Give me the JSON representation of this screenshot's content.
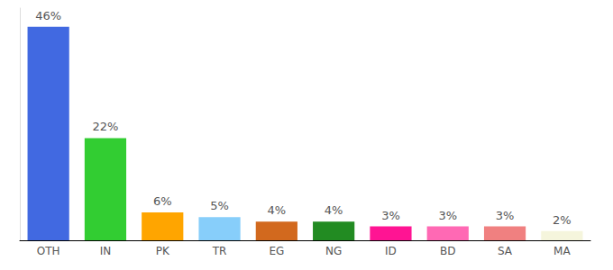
{
  "chart_data": {
    "type": "bar",
    "categories": [
      "OTH",
      "IN",
      "PK",
      "TR",
      "EG",
      "NG",
      "ID",
      "BD",
      "SA",
      "MA"
    ],
    "values": [
      46,
      22,
      6,
      5,
      4,
      4,
      3,
      3,
      3,
      2
    ],
    "value_labels": [
      "46%",
      "22%",
      "6%",
      "5%",
      "4%",
      "4%",
      "3%",
      "3%",
      "3%",
      "2%"
    ],
    "colors": [
      "#4169e1",
      "#32cd32",
      "#ffa500",
      "#87cefa",
      "#d2691e",
      "#228b22",
      "#ff1493",
      "#ff69b4",
      "#f08080",
      "#f5f5dc"
    ],
    "ylim": [
      0,
      50
    ],
    "grid": false,
    "data_labels": true,
    "tick_labels": "x"
  }
}
